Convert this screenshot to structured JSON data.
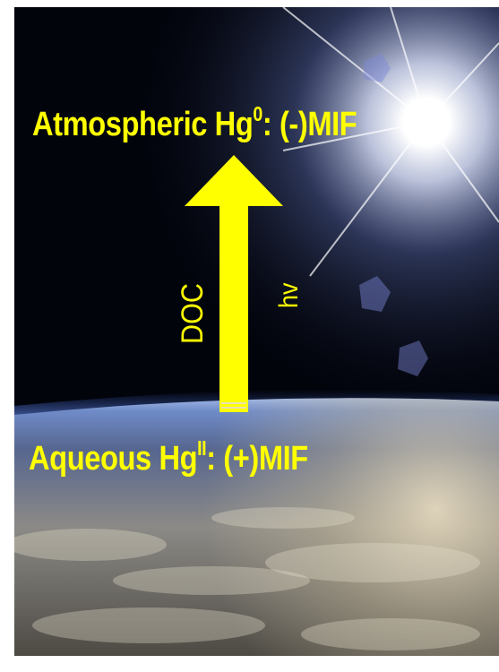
{
  "diagram": {
    "top_label": {
      "prefix": "Atmospheric Hg",
      "superscript": "0",
      "suffix": ": (-)MIF"
    },
    "bottom_label": {
      "prefix": "Aqueous Hg",
      "superscript": "II",
      "suffix": ": (+)MIF"
    },
    "arrow_left_label": "DOC",
    "arrow_right_label": "hv",
    "arrow_direction": "up"
  },
  "colors": {
    "label": "#ffff00",
    "arrow": "#ffff00",
    "space": "#02040c",
    "sun": "#ffffff",
    "earth_cloud": "#d8d2c0",
    "earth_ocean": "#3a4c78"
  }
}
